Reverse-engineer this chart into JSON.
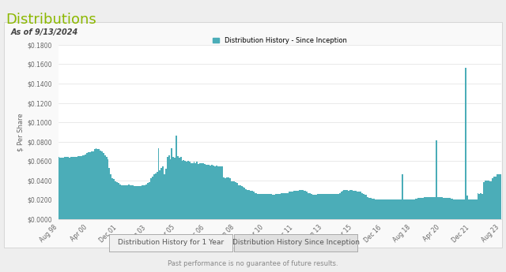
{
  "title": "Distributions",
  "subtitle": "As of 9/13/2024",
  "legend_label": "Distribution History - Since Inception",
  "ylabel": "$ Per Share",
  "bar_color": "#4BADB8",
  "background_color": "#eeeeee",
  "chart_bg": "#ffffff",
  "chart_border": "#dddddd",
  "title_color": "#8cb800",
  "footer_text": "Past performance is no guarantee of future results.",
  "button1": "Distribution History for 1 Year",
  "button2": "Distribution History Since Inception",
  "ylim": [
    0,
    0.18
  ],
  "yticks": [
    0.0,
    0.02,
    0.04,
    0.06,
    0.08,
    0.1,
    0.12,
    0.14,
    0.16,
    0.18
  ],
  "ytick_labels": [
    "$0.0000",
    "$0.0200",
    "$0.0400",
    "$0.0600",
    "$0.0800",
    "$0.1000",
    "$0.1200",
    "$0.1400",
    "$0.1600",
    "$0.1800"
  ],
  "xtick_labels": [
    "Aug 98",
    "Apr 00",
    "Dec 01",
    "Aug 03",
    "Apr 05",
    "Dec 06",
    "Aug 08",
    "Apr 10",
    "Dec 11",
    "Aug 13",
    "Apr 15",
    "Dec 16",
    "Aug 18",
    "Apr 20",
    "Dec 21",
    "Aug 23"
  ],
  "data": [
    0.064,
    0.063,
    0.063,
    0.063,
    0.064,
    0.064,
    0.064,
    0.063,
    0.064,
    0.064,
    0.064,
    0.064,
    0.064,
    0.065,
    0.065,
    0.065,
    0.066,
    0.066,
    0.067,
    0.068,
    0.069,
    0.069,
    0.07,
    0.07,
    0.072,
    0.073,
    0.072,
    0.072,
    0.071,
    0.07,
    0.068,
    0.066,
    0.064,
    0.062,
    0.053,
    0.046,
    0.042,
    0.041,
    0.039,
    0.038,
    0.037,
    0.036,
    0.035,
    0.035,
    0.035,
    0.035,
    0.035,
    0.036,
    0.035,
    0.035,
    0.035,
    0.034,
    0.034,
    0.034,
    0.034,
    0.034,
    0.035,
    0.035,
    0.035,
    0.036,
    0.037,
    0.038,
    0.042,
    0.044,
    0.046,
    0.047,
    0.049,
    0.073,
    0.05,
    0.053,
    0.054,
    0.046,
    0.052,
    0.064,
    0.066,
    0.062,
    0.073,
    0.064,
    0.063,
    0.086,
    0.065,
    0.063,
    0.064,
    0.06,
    0.061,
    0.06,
    0.059,
    0.06,
    0.059,
    0.058,
    0.058,
    0.059,
    0.058,
    0.059,
    0.057,
    0.058,
    0.058,
    0.058,
    0.057,
    0.056,
    0.056,
    0.056,
    0.055,
    0.056,
    0.055,
    0.054,
    0.055,
    0.054,
    0.054,
    0.054,
    0.054,
    0.043,
    0.042,
    0.043,
    0.043,
    0.042,
    0.039,
    0.039,
    0.039,
    0.038,
    0.037,
    0.035,
    0.035,
    0.034,
    0.033,
    0.032,
    0.031,
    0.03,
    0.03,
    0.029,
    0.029,
    0.028,
    0.027,
    0.027,
    0.026,
    0.026,
    0.026,
    0.026,
    0.026,
    0.026,
    0.026,
    0.026,
    0.026,
    0.026,
    0.025,
    0.025,
    0.026,
    0.026,
    0.026,
    0.026,
    0.027,
    0.027,
    0.027,
    0.027,
    0.027,
    0.028,
    0.028,
    0.028,
    0.029,
    0.029,
    0.029,
    0.029,
    0.03,
    0.03,
    0.03,
    0.029,
    0.029,
    0.028,
    0.027,
    0.027,
    0.026,
    0.025,
    0.025,
    0.025,
    0.026,
    0.026,
    0.026,
    0.026,
    0.026,
    0.026,
    0.026,
    0.026,
    0.026,
    0.026,
    0.026,
    0.026,
    0.026,
    0.026,
    0.026,
    0.027,
    0.028,
    0.029,
    0.03,
    0.03,
    0.03,
    0.029,
    0.03,
    0.03,
    0.029,
    0.029,
    0.029,
    0.028,
    0.028,
    0.028,
    0.027,
    0.026,
    0.025,
    0.025,
    0.023,
    0.022,
    0.022,
    0.021,
    0.021,
    0.02,
    0.02,
    0.02,
    0.02,
    0.02,
    0.02,
    0.02,
    0.02,
    0.02,
    0.02,
    0.02,
    0.02,
    0.02,
    0.02,
    0.02,
    0.02,
    0.02,
    0.02,
    0.046,
    0.02,
    0.02,
    0.02,
    0.02,
    0.02,
    0.02,
    0.02,
    0.02,
    0.021,
    0.021,
    0.022,
    0.022,
    0.022,
    0.022,
    0.023,
    0.023,
    0.023,
    0.023,
    0.023,
    0.023,
    0.023,
    0.023,
    0.081,
    0.023,
    0.023,
    0.023,
    0.023,
    0.022,
    0.022,
    0.022,
    0.022,
    0.022,
    0.021,
    0.021,
    0.02,
    0.02,
    0.02,
    0.02,
    0.02,
    0.02,
    0.02,
    0.02,
    0.156,
    0.024,
    0.02,
    0.02,
    0.02,
    0.02,
    0.02,
    0.02,
    0.027,
    0.026,
    0.027,
    0.026,
    0.038,
    0.04,
    0.04,
    0.04,
    0.039,
    0.039,
    0.042,
    0.044,
    0.044,
    0.046,
    0.046,
    0.046
  ]
}
